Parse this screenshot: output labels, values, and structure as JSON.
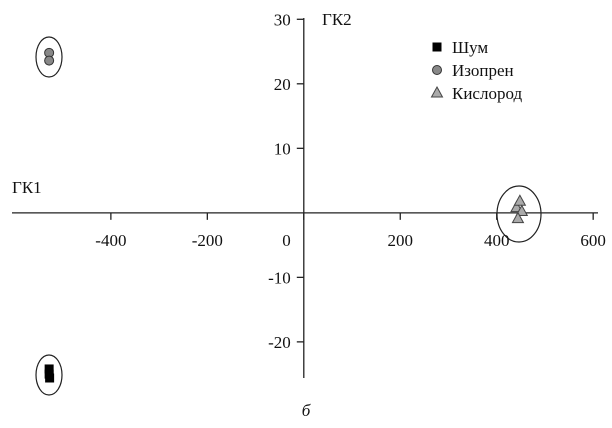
{
  "chart_data": {
    "type": "scatter",
    "x_label": "ГК1",
    "y_label": "ГК2",
    "caption": "б",
    "xlim": [
      -605,
      610
    ],
    "ylim": [
      -25.6,
      30.2
    ],
    "xticks": [
      -400,
      -200,
      0,
      200,
      400,
      600
    ],
    "yticks": [
      -20,
      -10,
      10,
      20,
      30
    ],
    "legend": "upper right",
    "series": [
      {
        "name": "Шум",
        "color": "#000000",
        "marker": "square",
        "x": [
          -528,
          -528,
          -527
        ],
        "y": [
          -24.2,
          -25.0,
          -25.6
        ]
      },
      {
        "name": "Изопрен",
        "color": "#888888",
        "marker": "circle",
        "x": [
          -528,
          -528
        ],
        "y": [
          24.8,
          23.6
        ]
      },
      {
        "name": "Кислород",
        "color": "#aaaaaa",
        "marker": "triangle",
        "x": [
          441,
          448,
          452,
          444
        ],
        "y": [
          0.8,
          1.8,
          0.2,
          -0.9
        ]
      }
    ]
  }
}
